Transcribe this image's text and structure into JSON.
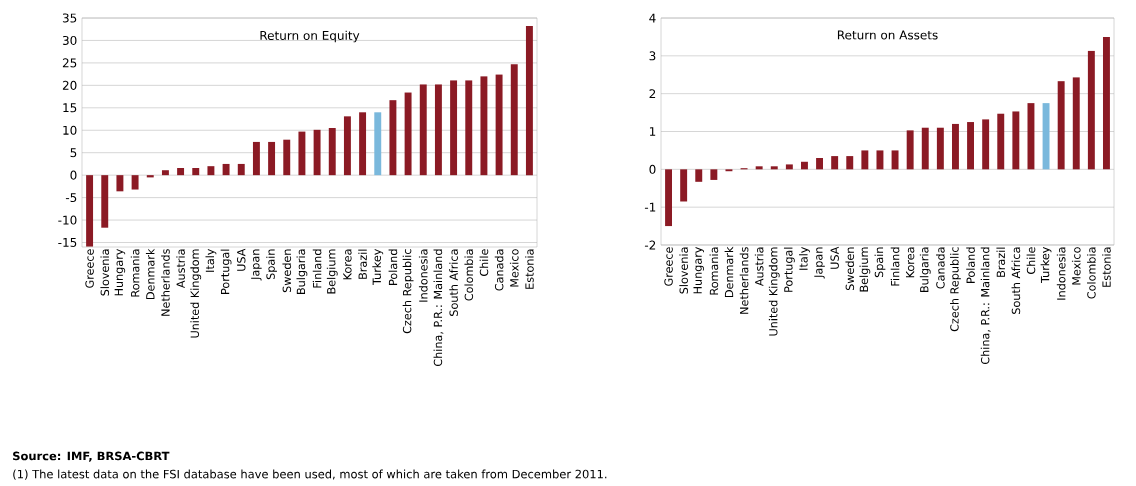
{
  "chart_data": [
    {
      "type": "bar",
      "title": "Return on Equity",
      "categories": [
        "Greece",
        "Slovenia",
        "Hungary",
        "Romania",
        "Denmark",
        "Netherlands",
        "Austria",
        "United Kingdom",
        "Italy",
        "Portugal",
        "USA",
        "Japan",
        "Spain",
        "Sweden",
        "Bulgaria",
        "Finland",
        "Belgium",
        "Korea",
        "Brazil",
        "Turkey",
        "Poland",
        "Czech Republic",
        "Indonesia",
        "China, P.R.: Mainland",
        "South Africa",
        "Colombia",
        "Chile",
        "Canada",
        "Mexico",
        "Estonia"
      ],
      "values": [
        -15.9,
        -11.7,
        -3.6,
        -3.2,
        -0.5,
        1.1,
        1.6,
        1.6,
        2.0,
        2.5,
        2.5,
        7.4,
        7.4,
        7.9,
        9.7,
        10.1,
        10.5,
        13.1,
        14.0,
        14.0,
        16.7,
        18.4,
        20.2,
        20.2,
        21.1,
        21.1,
        22.0,
        22.4,
        24.7,
        33.2
      ],
      "colors": [
        "#8b1a24",
        "#8b1a24",
        "#8b1a24",
        "#8b1a24",
        "#8b1a24",
        "#8b1a24",
        "#8b1a24",
        "#8b1a24",
        "#8b1a24",
        "#8b1a24",
        "#8b1a24",
        "#8b1a24",
        "#8b1a24",
        "#8b1a24",
        "#8b1a24",
        "#8b1a24",
        "#8b1a24",
        "#8b1a24",
        "#8b1a24",
        "#7ab8dc",
        "#8b1a24",
        "#8b1a24",
        "#8b1a24",
        "#8b1a24",
        "#8b1a24",
        "#8b1a24",
        "#8b1a24",
        "#8b1a24",
        "#8b1a24",
        "#8b1a24"
      ],
      "ylim": [
        -16,
        35
      ],
      "yticks": [
        -15,
        -10,
        -5,
        0,
        5,
        10,
        15,
        20,
        25,
        30,
        35
      ],
      "grid": "y",
      "annotations": [
        "Source: IMF, BRSA-CBRT",
        "(1) The latest data on the FSI database have been used, most of which are taken from December 2011."
      ]
    },
    {
      "type": "bar",
      "title": "Return on Assets",
      "categories": [
        "Greece",
        "Slovenia",
        "Hungary",
        "Romania",
        "Denmark",
        "Netherlands",
        "Austria",
        "United Kingdom",
        "Portugal",
        "Italy",
        "Japan",
        "USA",
        "Sweden",
        "Belgium",
        "Spain",
        "Finland",
        "Korea",
        "Bulgaria",
        "Canada",
        "Czech Republic",
        "Poland",
        "China, P.R.: Mainland",
        "Brazil",
        "South Africa",
        "Chile",
        "Turkey",
        "Indonesia",
        "Mexico",
        "Colombia",
        "Estonia"
      ],
      "values": [
        -1.5,
        -0.85,
        -0.33,
        -0.28,
        -0.05,
        0.03,
        0.08,
        0.08,
        0.13,
        0.2,
        0.3,
        0.35,
        0.35,
        0.5,
        0.5,
        0.5,
        1.03,
        1.1,
        1.1,
        1.2,
        1.25,
        1.32,
        1.47,
        1.53,
        1.75,
        1.75,
        2.33,
        2.43,
        3.13,
        3.5
      ],
      "colors": [
        "#8b1a24",
        "#8b1a24",
        "#8b1a24",
        "#8b1a24",
        "#8b1a24",
        "#8b1a24",
        "#8b1a24",
        "#8b1a24",
        "#8b1a24",
        "#8b1a24",
        "#8b1a24",
        "#8b1a24",
        "#8b1a24",
        "#8b1a24",
        "#8b1a24",
        "#8b1a24",
        "#8b1a24",
        "#8b1a24",
        "#8b1a24",
        "#8b1a24",
        "#8b1a24",
        "#8b1a24",
        "#8b1a24",
        "#8b1a24",
        "#8b1a24",
        "#7ab8dc",
        "#8b1a24",
        "#8b1a24",
        "#8b1a24",
        "#8b1a24"
      ],
      "ylim": [
        -2,
        4
      ],
      "yticks": [
        -2,
        -1,
        0,
        1,
        2,
        3,
        4
      ],
      "grid": "y"
    }
  ]
}
